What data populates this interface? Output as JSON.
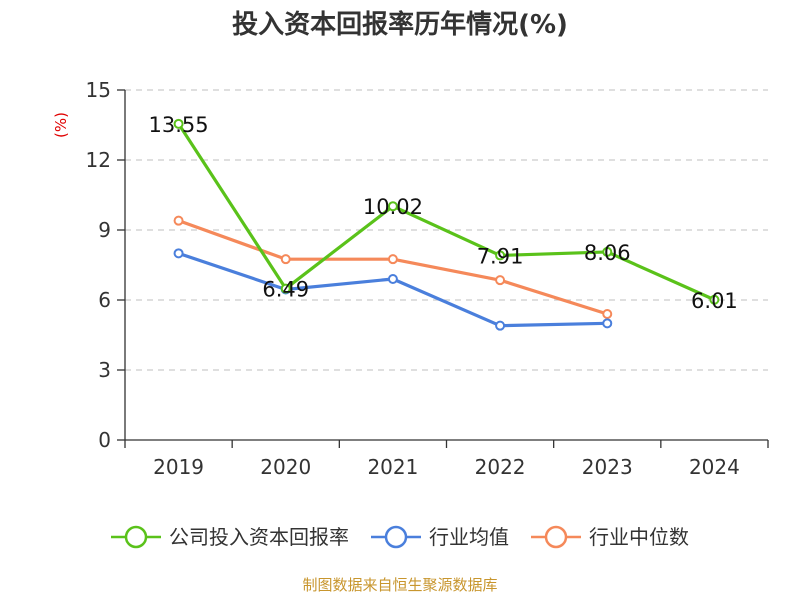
{
  "chart_data": {
    "type": "line",
    "title": "投入资本回报率历年情况(%)",
    "ylabel": "(%)",
    "xlabel": "",
    "categories": [
      "2019",
      "2020",
      "2021",
      "2022",
      "2023",
      "2024"
    ],
    "ylim": [
      0,
      15
    ],
    "yticks": [
      0,
      3,
      6,
      9,
      12,
      15
    ],
    "grid": true,
    "legend_position": "bottom",
    "series": [
      {
        "name": "公司投入资本回报率",
        "color": "#5ac21a",
        "values": [
          13.55,
          6.49,
          10.02,
          7.91,
          8.06,
          6.01
        ],
        "data_labels": [
          "13.55",
          "6.49",
          "10.02",
          "7.91",
          "8.06",
          "6.01"
        ]
      },
      {
        "name": "行业均值",
        "color": "#4a7fdc",
        "values": [
          8.0,
          6.45,
          6.9,
          4.9,
          5.0,
          null
        ]
      },
      {
        "name": "行业中位数",
        "color": "#f5895a",
        "values": [
          9.4,
          7.75,
          7.75,
          6.85,
          5.4,
          null
        ]
      }
    ]
  },
  "source": "制图数据来自恒生聚源数据库"
}
